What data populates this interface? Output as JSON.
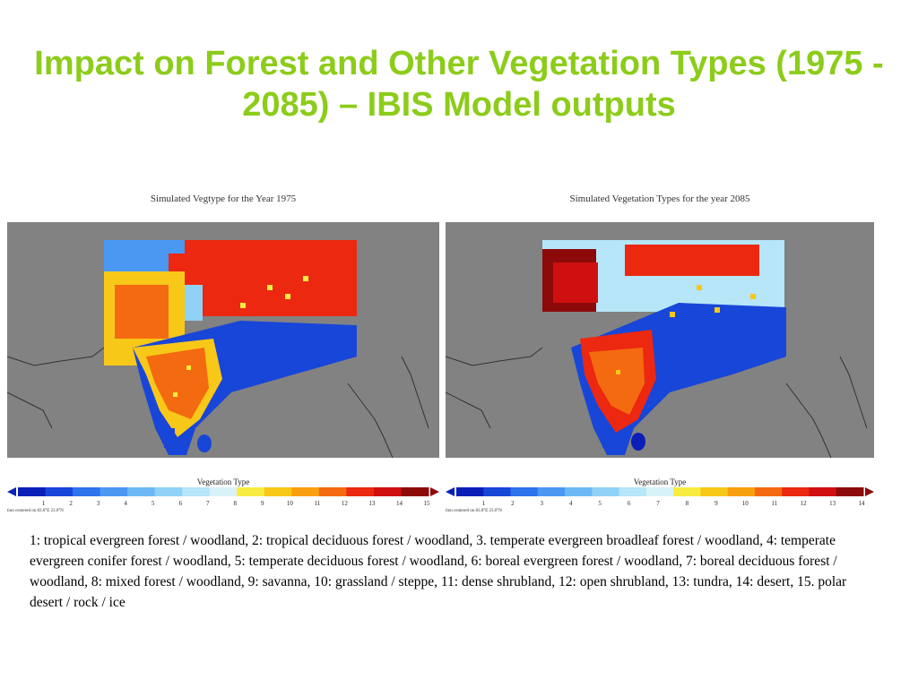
{
  "slide": {
    "title": "Impact on Forest and Other Vegetation Types (1975 - 2085) – IBIS Model outputs",
    "caption": "1: tropical evergreen forest / woodland, 2: tropical deciduous forest / woodland, 3. temperate evergreen broadleaf forest / woodland, 4: temperate evergreen conifer forest / woodland, 5: temperate deciduous forest / woodland, 6: boreal evergreen forest / woodland, 7: boreal deciduous forest / woodland, 8: mixed forest / woodland, 9: savanna, 10: grassland / steppe, 11: dense shrubland, 12: open shrubland, 13: tundra, 14: desert, 15. polar desert / rock / ice"
  },
  "maps": [
    {
      "title": "Simulated Vegtype for the Year 1975",
      "legend_title": "Vegetation Type",
      "ticks": [
        "1",
        "2",
        "3",
        "4",
        "5",
        "6",
        "7",
        "8",
        "9",
        "10",
        "11",
        "12",
        "13",
        "14",
        "15"
      ],
      "footnote": "tion centered on 83.0°E 23.0°N"
    },
    {
      "title": "Simulated Vegetation Types for the year 2085",
      "legend_title": "Vegetation Type",
      "ticks": [
        "1",
        "2",
        "3",
        "4",
        "5",
        "6",
        "7",
        "8",
        "9",
        "10",
        "11",
        "12",
        "13",
        "14"
      ],
      "footnote": "tion centered on 83.0°E 23.0°N"
    }
  ],
  "colors": {
    "background_map": "#828282",
    "legend": [
      "#0a1fb8",
      "#1846d8",
      "#2e74ec",
      "#4a98f2",
      "#6cb8f4",
      "#8fd2f6",
      "#b6e6f8",
      "#d8f2f8",
      "#f8ec40",
      "#f8c818",
      "#f8a010",
      "#f46a10",
      "#ec2810",
      "#d01010",
      "#8c0a0a"
    ],
    "title_color": "#8ccc1a"
  },
  "icons": [
    "arrow-left-icon",
    "arrow-right-icon"
  ]
}
